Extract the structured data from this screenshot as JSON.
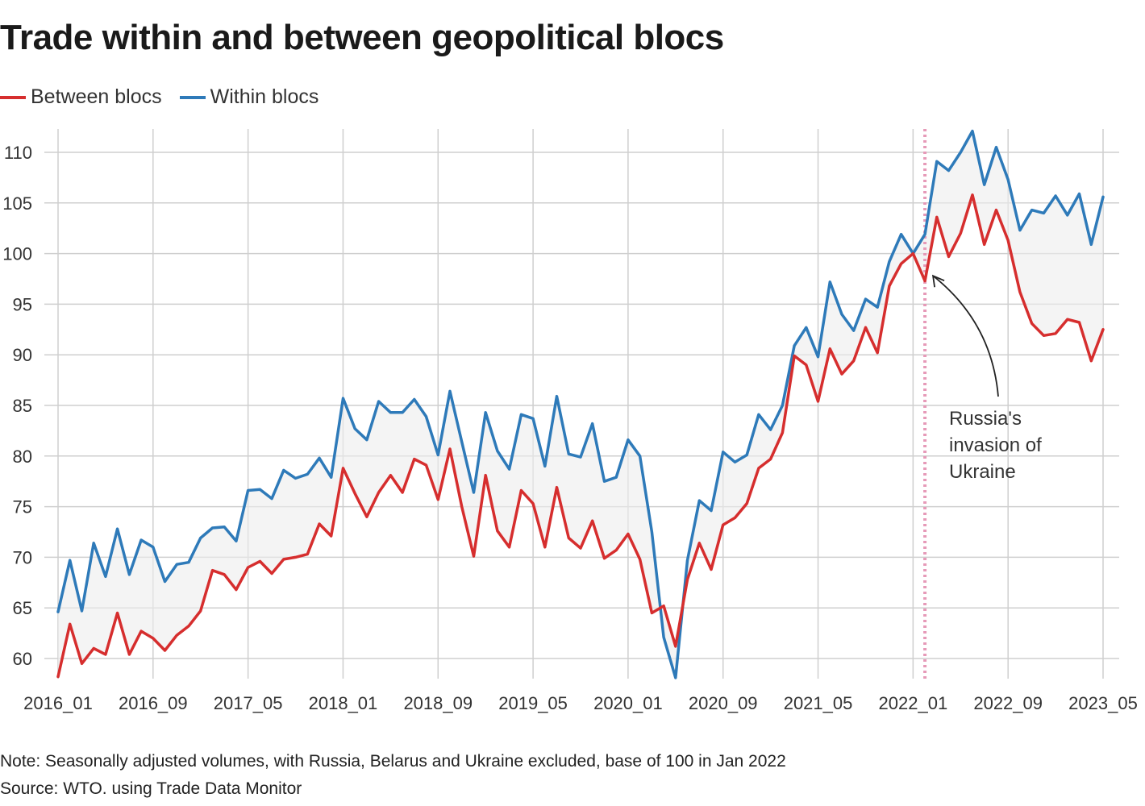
{
  "title": "Trade within and between geopolitical blocs",
  "note": "Note: Seasonally adjusted volumes, with Russia, Belarus and Ukraine excluded, base of 100 in Jan 2022",
  "source": "Source: WTO. using Trade Data Monitor",
  "chart_data": {
    "type": "line",
    "title": "Trade within and between geopolitical blocs",
    "xlabel": "",
    "ylabel": "",
    "ylim": [
      58,
      112.5
    ],
    "yticks": [
      60,
      65,
      70,
      75,
      80,
      85,
      90,
      95,
      100,
      105,
      110
    ],
    "xtick_labels": [
      "2016_01",
      "2016_09",
      "2017_05",
      "2018_01",
      "2018_09",
      "2019_05",
      "2020_01",
      "2020_09",
      "2021_05",
      "2022_01",
      "2022_09",
      "2023_05"
    ],
    "x_start": "2016_01",
    "x_end": "2023_05",
    "grid": true,
    "legend_position": "top-left",
    "series": [
      {
        "name": "Between blocs",
        "color": "#d62e2e",
        "values": [
          58.2,
          63.4,
          59.5,
          61.0,
          60.4,
          64.5,
          60.4,
          62.7,
          62.0,
          60.8,
          62.3,
          63.2,
          64.7,
          68.7,
          68.3,
          66.8,
          69.0,
          69.6,
          68.4,
          69.8,
          70.0,
          70.3,
          73.3,
          72.1,
          78.8,
          76.3,
          74.0,
          76.4,
          78.1,
          76.4,
          79.7,
          79.1,
          75.7,
          80.7,
          75.0,
          70.1,
          78.1,
          72.6,
          71.0,
          76.6,
          75.3,
          71.0,
          76.9,
          71.9,
          70.9,
          73.6,
          69.9,
          70.7,
          72.3,
          69.8,
          64.5,
          65.2,
          61.2,
          67.8,
          71.4,
          68.8,
          73.2,
          73.9,
          75.3,
          78.8,
          79.7,
          82.3,
          89.9,
          89.0,
          85.4,
          90.6,
          88.1,
          89.4,
          92.7,
          90.2,
          96.8,
          99.0,
          100.0,
          97.3,
          103.6,
          99.7,
          102.0,
          105.8,
          100.9,
          104.3,
          101.3,
          96.2,
          93.1,
          91.9,
          92.1,
          93.5,
          93.2,
          89.4,
          92.5
        ]
      },
      {
        "name": "Within blocs",
        "color": "#2e7ab9",
        "values": [
          64.6,
          69.7,
          64.7,
          71.4,
          68.1,
          72.8,
          68.3,
          71.7,
          71.0,
          67.6,
          69.3,
          69.5,
          71.9,
          72.9,
          73.0,
          71.6,
          76.6,
          76.7,
          75.8,
          78.6,
          77.8,
          78.2,
          79.8,
          77.9,
          85.7,
          82.7,
          81.6,
          85.4,
          84.3,
          84.3,
          85.6,
          83.9,
          80.1,
          86.4,
          81.4,
          76.4,
          84.3,
          80.5,
          78.7,
          84.1,
          83.7,
          79.0,
          85.9,
          80.2,
          79.9,
          83.2,
          77.5,
          77.9,
          81.6,
          80.0,
          72.5,
          62.1,
          58.1,
          69.7,
          75.6,
          74.6,
          80.4,
          79.4,
          80.1,
          84.1,
          82.6,
          85.0,
          90.9,
          92.7,
          89.8,
          97.2,
          94.0,
          92.4,
          95.5,
          94.7,
          99.2,
          101.9,
          100.0,
          101.9,
          109.1,
          108.2,
          110.0,
          112.1,
          106.8,
          110.5,
          107.3,
          102.3,
          104.3,
          104.0,
          105.7,
          103.8,
          105.9,
          100.9,
          105.6
        ]
      }
    ],
    "annotations": [
      {
        "text_lines": [
          "Russia's",
          "invasion of",
          "Ukraine"
        ],
        "x": "2022_02",
        "style": "dotted vertical line"
      }
    ]
  }
}
